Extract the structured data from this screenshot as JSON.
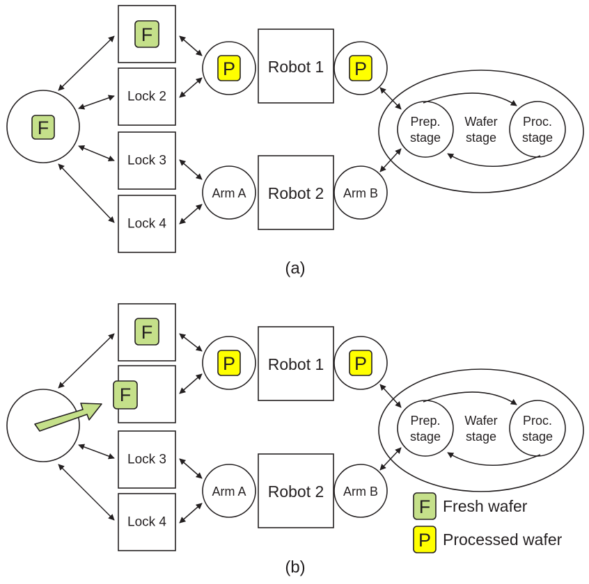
{
  "badges": {
    "fresh": "F",
    "processed": "P"
  },
  "colors": {
    "fresh": "#c5e08a",
    "processed": "#ffff00",
    "stroke": "#231f20"
  },
  "panel_a": {
    "caption": "(a)",
    "lock2": "Lock 2",
    "lock3": "Lock 3",
    "lock4": "Lock 4",
    "robot1": "Robot 1",
    "robot2": "Robot 2",
    "arm_a": "Arm A",
    "arm_b": "Arm B",
    "prep_line1": "Prep.",
    "prep_line2": "stage",
    "wafer_line1": "Wafer",
    "wafer_line2": "stage",
    "proc_line1": "Proc.",
    "proc_line2": "stage"
  },
  "panel_b": {
    "caption": "(b)",
    "lock3": "Lock 3",
    "lock4": "Lock 4",
    "robot1": "Robot 1",
    "robot2": "Robot 2",
    "arm_a": "Arm A",
    "arm_b": "Arm B",
    "prep_line1": "Prep.",
    "prep_line2": "stage",
    "wafer_line1": "Wafer",
    "wafer_line2": "stage",
    "proc_line1": "Proc.",
    "proc_line2": "stage"
  },
  "legend": {
    "fresh": "Fresh wafer",
    "processed": "Processed wafer"
  }
}
